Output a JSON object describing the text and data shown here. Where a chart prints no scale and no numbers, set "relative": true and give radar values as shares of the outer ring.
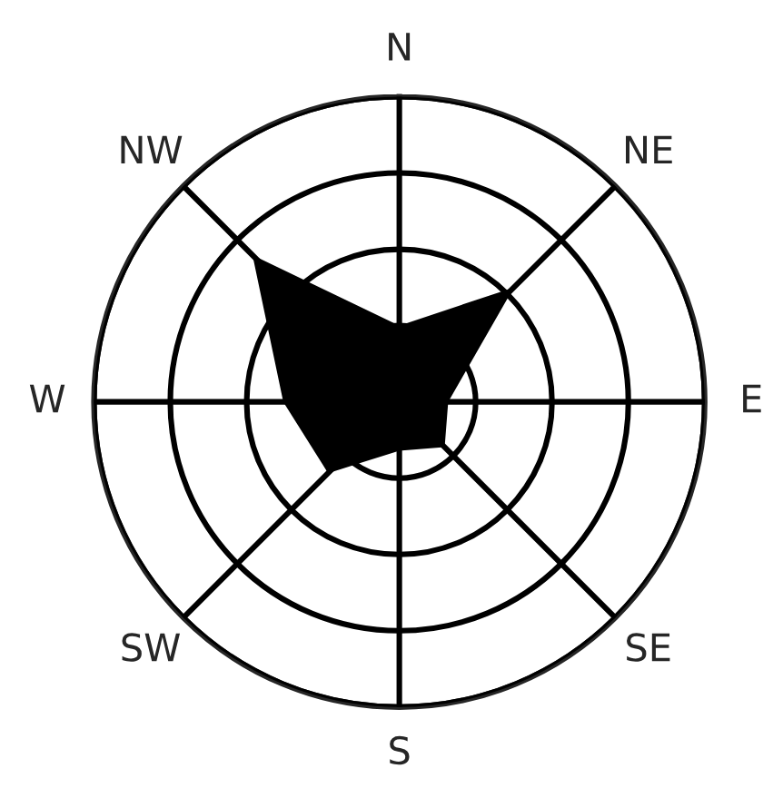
{
  "chart_data": {
    "type": "radar",
    "relative": true,
    "categories": [
      "N",
      "NE",
      "E",
      "SE",
      "S",
      "SW",
      "W",
      "NW"
    ],
    "series": [
      {
        "color": "#000000",
        "values": [
          0.25,
          0.53,
          0.16,
          0.21,
          0.16,
          0.33,
          0.38,
          0.68
        ]
      }
    ],
    "grid": true
  }
}
